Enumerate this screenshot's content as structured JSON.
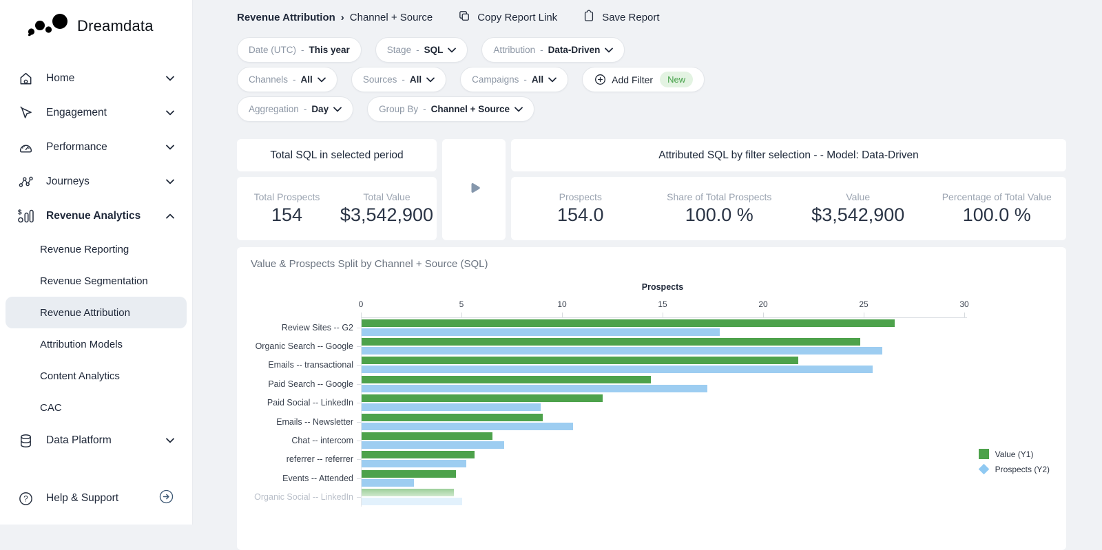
{
  "brand": {
    "name": "Dreamdata"
  },
  "sidebar": {
    "items": [
      {
        "label": "Home",
        "icon": "home-icon",
        "chevron": "down",
        "active": false
      },
      {
        "label": "Engagement",
        "icon": "cursor-icon",
        "chevron": "down",
        "active": false
      },
      {
        "label": "Performance",
        "icon": "gauge-icon",
        "chevron": "down",
        "active": false
      },
      {
        "label": "Journeys",
        "icon": "journeys-icon",
        "chevron": "down",
        "active": false
      },
      {
        "label": "Revenue Analytics",
        "icon": "revenue-analytics-icon",
        "chevron": "up",
        "active": true
      }
    ],
    "sub_items": [
      {
        "label": "Revenue Reporting",
        "selected": false
      },
      {
        "label": "Revenue Segmentation",
        "selected": false
      },
      {
        "label": "Revenue Attribution",
        "selected": true
      },
      {
        "label": "Attribution Models",
        "selected": false
      },
      {
        "label": "Content Analytics",
        "selected": false
      },
      {
        "label": "CAC",
        "selected": false
      }
    ],
    "bottom_items": [
      {
        "label": "Data Platform",
        "icon": "database-icon",
        "chevron": "down",
        "active": false
      }
    ],
    "help": {
      "label": "Help & Support",
      "icon": "help-icon",
      "action_icon": "arrow-right-circle-icon"
    }
  },
  "topbar": {
    "breadcrumb": {
      "parent": "Revenue Attribution",
      "separator": "›",
      "current": "Channel + Source"
    },
    "copy_link_label": "Copy Report Link",
    "save_label": "Save Report"
  },
  "filters": {
    "rows": [
      [
        {
          "type": "filter",
          "label": "Date (UTC)",
          "value": "This year",
          "chevron": false
        },
        {
          "type": "filter",
          "label": "Stage",
          "value": "SQL",
          "chevron": true
        },
        {
          "type": "filter",
          "label": "Attribution",
          "value": "Data-Driven",
          "chevron": true
        }
      ],
      [
        {
          "type": "filter",
          "label": "Channels",
          "value": "All",
          "chevron": true
        },
        {
          "type": "filter",
          "label": "Sources",
          "value": "All",
          "chevron": true
        },
        {
          "type": "filter",
          "label": "Campaigns",
          "value": "All",
          "chevron": true
        },
        {
          "type": "add",
          "label": "Add Filter",
          "badge": "New"
        }
      ],
      [
        {
          "type": "filter",
          "label": "Aggregation",
          "value": "Day",
          "chevron": true
        },
        {
          "type": "filter",
          "label": "Group By",
          "value": "Channel + Source",
          "chevron": true
        }
      ]
    ]
  },
  "summary_card": {
    "title": "Total SQL in selected period",
    "stats": [
      {
        "label": "Total Prospects",
        "value": "154"
      },
      {
        "label": "Total Value",
        "value": "$3,542,900"
      }
    ]
  },
  "attributed_card": {
    "title": "Attributed SQL by filter selection - - Model: Data-Driven",
    "stats": [
      {
        "label": "Prospects",
        "value": "154.0"
      },
      {
        "label": "Share of Total Prospects",
        "value": "100.0 %"
      },
      {
        "label": "Value",
        "value": "$3,542,900"
      },
      {
        "label": "Percentage of Total Value",
        "value": "100.0 %"
      }
    ]
  },
  "chart_data": {
    "type": "bar",
    "orientation": "horizontal",
    "title": "Value & Prospects Split by Channel + Source (SQL)",
    "top_axis_label": "Prospects",
    "x_ticks": [
      0,
      5,
      10,
      15,
      20,
      25,
      30
    ],
    "xlim": [
      0,
      30
    ],
    "grid": false,
    "legend_position": "right",
    "categories": [
      "Review Sites -- G2",
      "Organic Search -- Google",
      "Emails -- transactional",
      "Paid Search -- Google",
      "Paid Social -- LinkedIn",
      "Emails -- Newsletter",
      "Chat -- intercom",
      "referrer -- referrer",
      "Events -- Attended",
      "Organic Social -- LinkedIn"
    ],
    "series": [
      {
        "name": "Value (Y1)",
        "marker": "square",
        "color": "#4da24b",
        "values": [
          26.5,
          24.8,
          21.7,
          14.4,
          12.0,
          9.0,
          6.5,
          5.6,
          4.7,
          4.6
        ],
        "note": "bar lengths measured against the top Prospects axis scale; Y1 value axis not visible"
      },
      {
        "name": "Prospects (Y2)",
        "marker": "diamond",
        "color": "#9dcdf1",
        "values": [
          17.8,
          25.9,
          25.4,
          17.2,
          8.9,
          10.5,
          7.1,
          5.2,
          2.6,
          5.0
        ]
      }
    ],
    "faded_last_row": true
  },
  "colors": {
    "background": "#f0f2f5",
    "sidebar_bg": "#ffffff",
    "selected_pill": "#e9edf2",
    "green_bar": "#4da24b",
    "blue_bar": "#9dcdf1",
    "badge_new_bg": "#e3f3e2",
    "badge_new_text": "#43a047",
    "arrow_icon": "#8597ac"
  }
}
